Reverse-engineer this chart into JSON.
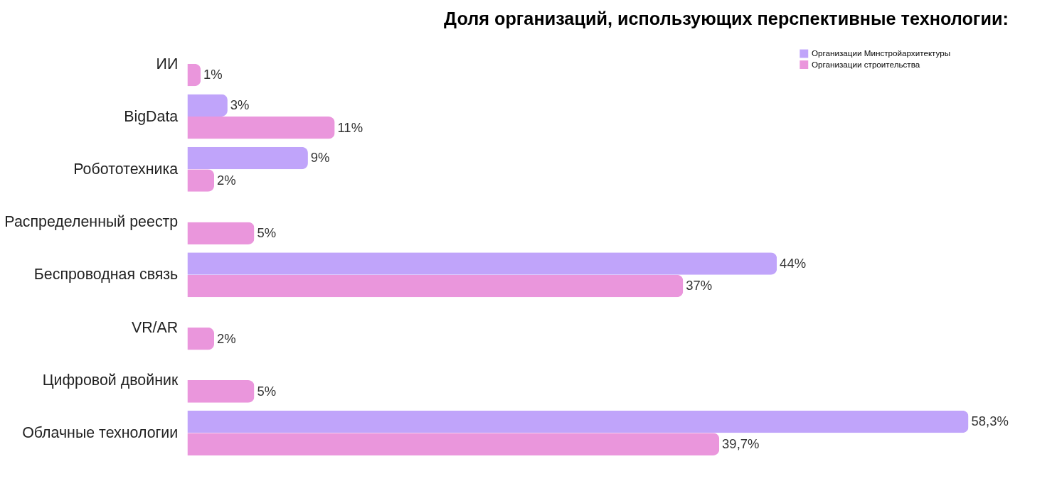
{
  "chart_data": {
    "type": "bar",
    "orientation": "horizontal",
    "title": "Доля организаций, использующих перспективные технологии:",
    "categories": [
      "ИИ",
      "BigData",
      "Робототехника",
      "Распределенный реестр",
      "Беспроводная связь",
      "VR/AR",
      "Цифровой двойник",
      "Облачные технологии"
    ],
    "series": [
      {
        "name": "Организации Минстройархитектуры",
        "color": "#c0a4fa",
        "values": [
          null,
          3,
          9,
          null,
          44,
          null,
          null,
          58.3
        ],
        "value_labels": [
          null,
          "3%",
          "9%",
          null,
          "44%",
          null,
          null,
          "58,3%"
        ]
      },
      {
        "name": "Организации строительства",
        "color": "#ea96dc",
        "values": [
          1,
          11,
          2,
          5,
          37,
          2,
          5,
          39.7
        ],
        "value_labels": [
          "1%",
          "11%",
          "2%",
          "5%",
          "37%",
          "2%",
          "5%",
          "39,7%"
        ]
      }
    ],
    "legend": "top right"
  }
}
